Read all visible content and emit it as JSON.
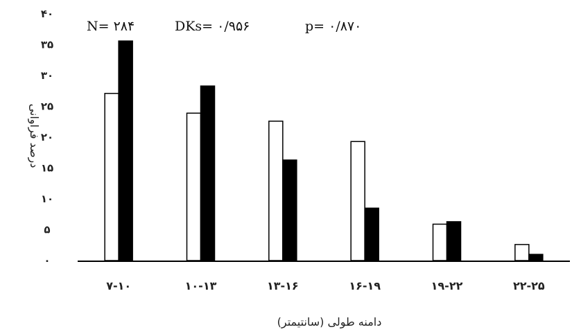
{
  "chart_data": {
    "type": "bar",
    "categories": [
      "۷-۱۰",
      "۱۰-۱۳",
      "۱۳-۱۶",
      "۱۶-۱۹",
      "۱۹-۲۲",
      "۲۲-۲۵"
    ],
    "series": [
      {
        "values": [
          27.1,
          23.9,
          22.6,
          19.3,
          5.9,
          2.6
        ]
      },
      {
        "values": [
          35.6,
          28.3,
          16.3,
          8.5,
          6.3,
          1.0
        ]
      }
    ],
    "series_colors": [
      "#ffffff",
      "#000000"
    ],
    "ylim": [
      0,
      40
    ],
    "yticks": [
      0,
      5,
      10,
      15,
      20,
      25,
      30,
      35,
      40
    ],
    "ytick_labels": [
      "۰",
      "۵",
      "۱۰",
      "۱۵",
      "۲۰",
      "۲۵",
      "۳۰",
      "۳۵",
      "۴۰"
    ],
    "ylabel": "درصد فراوانی",
    "xlabel": "دامنه طولی (سانتیمتر)",
    "annotations": {
      "n": "N= ۲۸۴",
      "dks": "DKs= ۰/۹۵۶",
      "p": "p= ۰/۸۷۰"
    },
    "grid": false
  }
}
